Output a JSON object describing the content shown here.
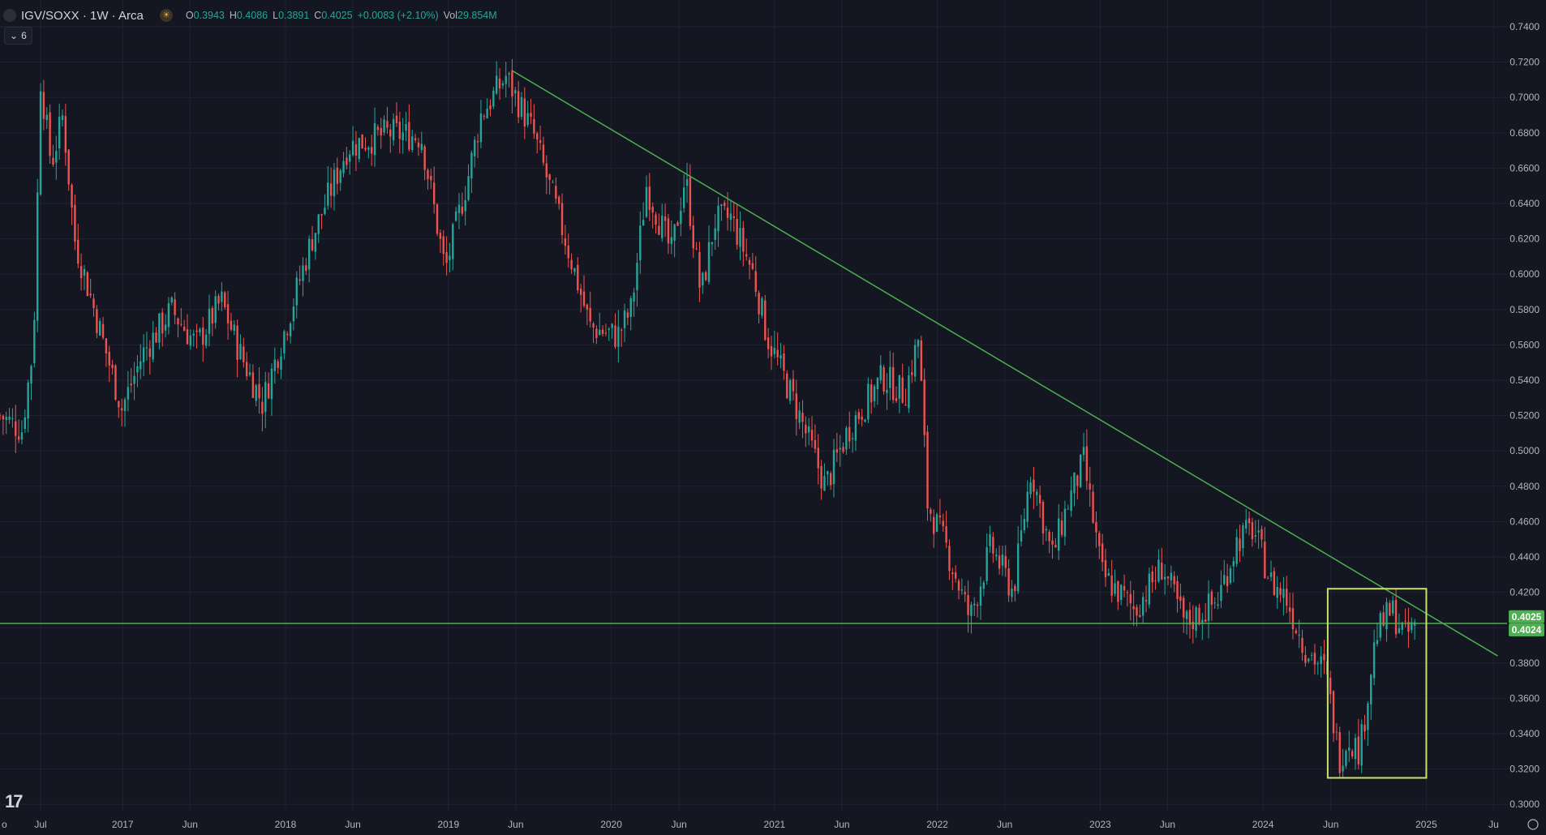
{
  "header": {
    "title": "IGV/SOXX · 1W · Arca",
    "open_label": "O",
    "open": "0.3943",
    "high_label": "H",
    "high": "0.4086",
    "low_label": "L",
    "low": "0.3891",
    "close_label": "C",
    "close": "0.4025",
    "change": "+0.0083 (+2.10%)",
    "vol_label": "Vol",
    "vol": "29.854M",
    "collapse_count": "6"
  },
  "colors": {
    "background": "#141722",
    "up": "#26a69a",
    "down": "#ef5350",
    "trendline": "#4caf50",
    "box": "#c6e26a",
    "price_tag": "#4caf50"
  },
  "chart_data": {
    "type": "candlestick",
    "interval": "1W",
    "x_axis_labels": [
      "Jul",
      "2017",
      "Jun",
      "2018",
      "Jun",
      "2019",
      "Jun",
      "2020",
      "Jun",
      "2021",
      "Jun",
      "2022",
      "Jun",
      "2023",
      "Jun",
      "2024",
      "Jun",
      "2025",
      "Ju"
    ],
    "y_ticks": [
      "0.7400",
      "0.7200",
      "0.7000",
      "0.6800",
      "0.6600",
      "0.6400",
      "0.6200",
      "0.6000",
      "0.5800",
      "0.5600",
      "0.5400",
      "0.5200",
      "0.5000",
      "0.4800",
      "0.4600",
      "0.4400",
      "0.4200",
      "0.4000",
      "0.3800",
      "0.3600",
      "0.3400",
      "0.3200",
      "0.3000"
    ],
    "ylim": [
      0.3,
      0.74
    ],
    "xlim": [
      "2016-04-01",
      "2025-07-01"
    ],
    "anchors": [
      [
        "2016-04-01",
        0.52
      ],
      [
        "2016-05-20",
        0.512
      ],
      [
        "2016-06-15",
        0.56
      ],
      [
        "2016-07-01",
        0.71
      ],
      [
        "2016-07-25",
        0.662
      ],
      [
        "2016-08-20",
        0.69
      ],
      [
        "2016-09-15",
        0.62
      ],
      [
        "2016-11-20",
        0.56
      ],
      [
        "2016-12-30",
        0.524
      ],
      [
        "2017-02-15",
        0.555
      ],
      [
        "2017-04-20",
        0.58
      ],
      [
        "2017-06-15",
        0.56
      ],
      [
        "2017-08-10",
        0.585
      ],
      [
        "2017-09-20",
        0.556
      ],
      [
        "2017-11-10",
        0.527
      ],
      [
        "2017-12-30",
        0.568
      ],
      [
        "2018-03-01",
        0.62
      ],
      [
        "2018-05-20",
        0.672
      ],
      [
        "2018-08-20",
        0.68
      ],
      [
        "2018-11-01",
        0.678
      ],
      [
        "2018-12-25",
        0.602
      ],
      [
        "2019-02-15",
        0.656
      ],
      [
        "2019-03-15",
        0.69
      ],
      [
        "2019-05-10",
        0.712
      ],
      [
        "2019-07-10",
        0.68
      ],
      [
        "2019-09-20",
        0.62
      ],
      [
        "2019-11-15",
        0.57
      ],
      [
        "2020-01-15",
        0.565
      ],
      [
        "2020-02-15",
        0.58
      ],
      [
        "2020-03-20",
        0.65
      ],
      [
        "2020-05-15",
        0.612
      ],
      [
        "2020-06-15",
        0.656
      ],
      [
        "2020-07-20",
        0.588
      ],
      [
        "2020-08-20",
        0.63
      ],
      [
        "2020-09-25",
        0.632
      ],
      [
        "2020-11-15",
        0.6
      ],
      [
        "2020-12-15",
        0.565
      ],
      [
        "2021-02-20",
        0.524
      ],
      [
        "2021-04-25",
        0.48
      ],
      [
        "2021-06-15",
        0.512
      ],
      [
        "2021-09-01",
        0.542
      ],
      [
        "2021-10-20",
        0.532
      ],
      [
        "2021-11-20",
        0.564
      ],
      [
        "2021-12-10",
        0.47
      ],
      [
        "2022-01-20",
        0.446
      ],
      [
        "2022-03-15",
        0.405
      ],
      [
        "2022-05-01",
        0.446
      ],
      [
        "2022-06-20",
        0.42
      ],
      [
        "2022-07-30",
        0.49
      ],
      [
        "2022-09-15",
        0.44
      ],
      [
        "2022-10-20",
        0.47
      ],
      [
        "2022-11-25",
        0.494
      ],
      [
        "2023-01-05",
        0.43
      ],
      [
        "2023-03-20",
        0.41
      ],
      [
        "2023-05-20",
        0.435
      ],
      [
        "2023-07-10",
        0.402
      ],
      [
        "2023-09-20",
        0.415
      ],
      [
        "2023-11-05",
        0.45
      ],
      [
        "2023-12-10",
        0.456
      ],
      [
        "2024-01-20",
        0.425
      ],
      [
        "2024-02-20",
        0.418
      ],
      [
        "2024-04-01",
        0.39
      ],
      [
        "2024-05-20",
        0.375
      ],
      [
        "2024-06-20",
        0.326
      ],
      [
        "2024-07-10",
        0.338
      ],
      [
        "2024-08-05",
        0.33
      ],
      [
        "2024-09-10",
        0.396
      ],
      [
        "2024-10-15",
        0.41
      ],
      [
        "2024-11-15",
        0.395
      ],
      [
        "2024-12-10",
        0.4025
      ]
    ],
    "trendline": {
      "from": [
        "2019-05-25",
        0.715
      ],
      "to": [
        "2025-06-10",
        0.384
      ]
    },
    "support_line": 0.4024,
    "highlight_box": {
      "from": [
        "2024-05-25",
        0.315
      ],
      "to": [
        "2025-01-01",
        0.422
      ]
    },
    "price_labels": [
      "0.4025",
      "0.4024"
    ]
  }
}
